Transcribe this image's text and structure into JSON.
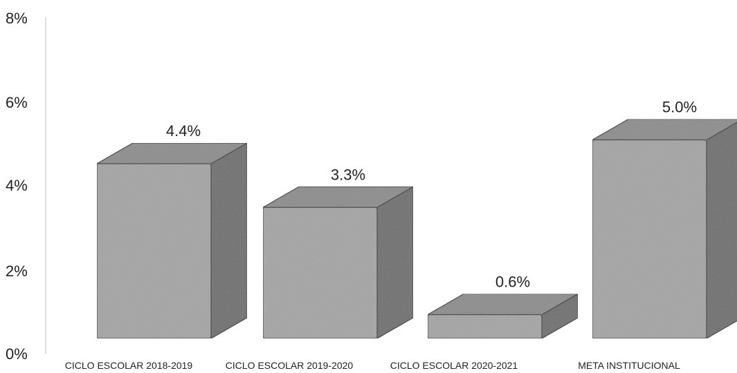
{
  "chart_data": {
    "type": "bar",
    "categories": [
      "CICLO ESCOLAR 2018-2019",
      "CICLO ESCOLAR 2019-2020",
      "CICLO ESCOLAR 2020-2021",
      "META INSTITUCIONAL"
    ],
    "values": [
      4.4,
      3.3,
      0.6,
      5.0
    ],
    "data_labels": [
      "4.4%",
      "3.3%",
      "0.6%",
      "5.0%"
    ],
    "y_ticks": [
      "0%",
      "2%",
      "4%",
      "6%",
      "8%"
    ],
    "ylim": [
      0,
      8
    ],
    "grid": false,
    "legend": "none",
    "colors": {
      "front": "#a4a4a4",
      "side": "#6e6e6e",
      "top": "#8c8c8c",
      "outline": "#3a3a3a",
      "axis": "#bdbdbd"
    }
  }
}
